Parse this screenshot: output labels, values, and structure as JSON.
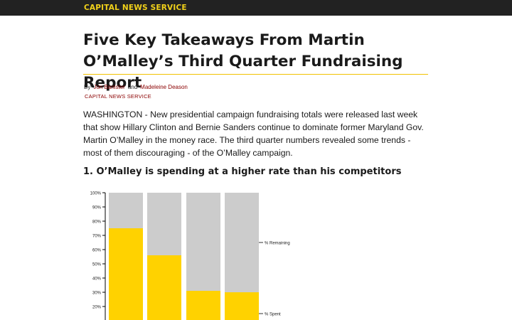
{
  "header": {
    "brand": "CAPITAL NEWS SERVICE"
  },
  "article": {
    "title": "Five Key Takeaways From Martin O’Malley’s Third Quarter Fundraising Report",
    "byline_prefix": "By",
    "author1": "Jon Banister",
    "and": "and",
    "author2": "Madeleine Deason",
    "outlet": "CAPITAL NEWS SERVICE",
    "lede": "WASHINGTON - New presidential campaign fundraising totals were released last week that show Hillary Clinton and Bernie Sanders continue to dominate former Maryland Gov. Martin O’Malley in the money race. The third quarter numbers revealed some trends - most of them discouraging - of the O’Malley campaign.",
    "section1_heading": "1. O’Malley is spending at a higher rate than his competitors"
  },
  "colors": {
    "spent": "#ffd200",
    "remaining": "#cccccc",
    "brand": "#f2d21a",
    "link": "#8b0000"
  },
  "chart_data": {
    "type": "bar",
    "stacked": true,
    "categories": [
      "",
      "",
      "",
      ""
    ],
    "series": [
      {
        "name": "% Spent",
        "values": [
          75,
          56,
          31,
          30
        ]
      },
      {
        "name": "% Remaining",
        "values": [
          25,
          44,
          69,
          70
        ]
      }
    ],
    "ylim": [
      0,
      100
    ],
    "yticks": [
      "100%",
      "90%",
      "80%",
      "70%",
      "60%",
      "50%",
      "40%",
      "30%",
      "20%"
    ],
    "legend": "right"
  }
}
